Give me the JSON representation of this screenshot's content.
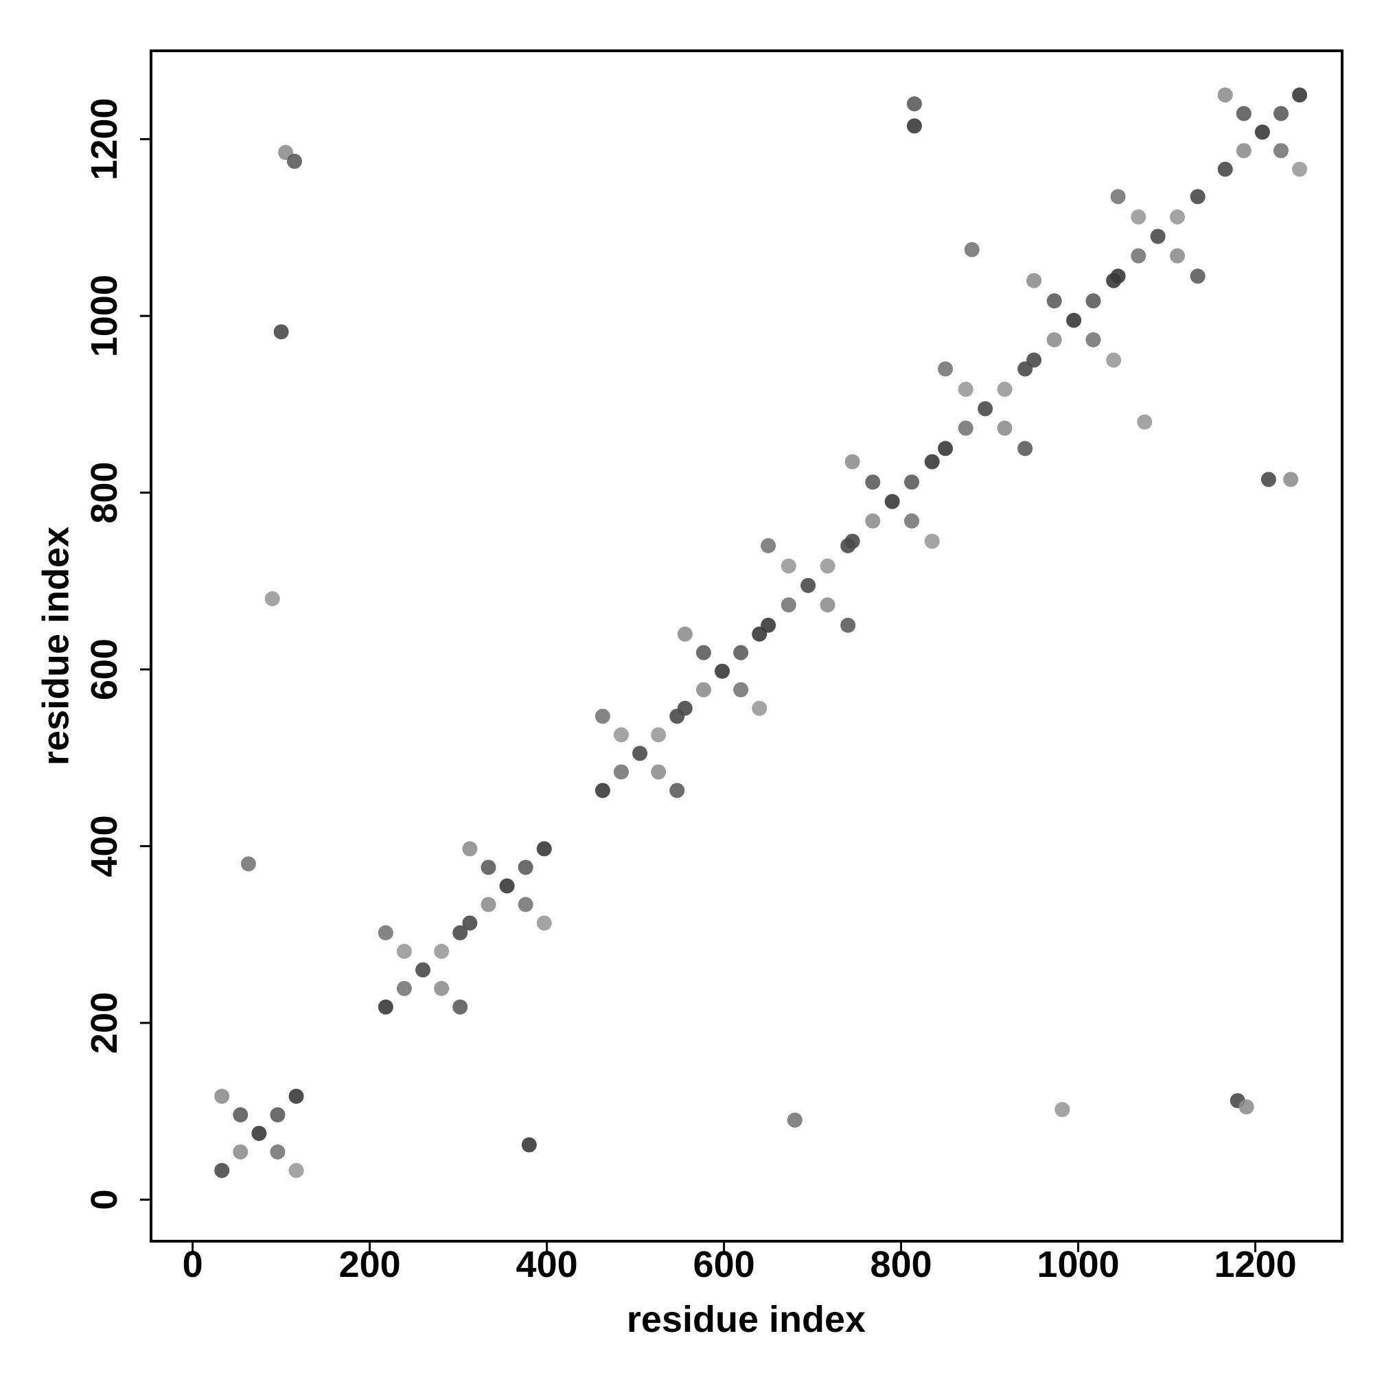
{
  "chart_data": {
    "type": "scatter",
    "x_label": "residue index",
    "y_label": "residue index",
    "xlim": [
      -47,
      1298
    ],
    "ylim": [
      -47,
      1300
    ],
    "xticks": [
      0,
      200,
      400,
      600,
      800,
      1000,
      1200
    ],
    "yticks": [
      0,
      200,
      400,
      600,
      800,
      1000,
      1200
    ],
    "colors": [
      "#8f8f8f",
      "#5c5c5c",
      "#3a3a3a",
      "#777777",
      "#9a9a9a",
      "#4a4a4a"
    ],
    "x": [
      33,
      54,
      75,
      96,
      117,
      33,
      54,
      96,
      117,
      218,
      239,
      260,
      281,
      302,
      218,
      239,
      281,
      302,
      313,
      334,
      355,
      376,
      397,
      313,
      334,
      376,
      397,
      463,
      484,
      505,
      526,
      547,
      463,
      484,
      526,
      547,
      556,
      577,
      598,
      619,
      640,
      556,
      577,
      619,
      640,
      650,
      673,
      695,
      717,
      740,
      650,
      673,
      717,
      740,
      745,
      768,
      790,
      812,
      835,
      745,
      768,
      812,
      835,
      850,
      873,
      895,
      917,
      940,
      850,
      873,
      917,
      940,
      950,
      973,
      995,
      1017,
      1040,
      950,
      973,
      1017,
      1040,
      1045,
      1068,
      1090,
      1112,
      1135,
      1045,
      1068,
      1112,
      1135,
      1166,
      1187,
      1208,
      1229,
      1250,
      1166,
      1187,
      1229,
      1250,
      63,
      90,
      100,
      105,
      115,
      380,
      680,
      982,
      1180,
      1190,
      815,
      815,
      880,
      1075,
      1215,
      1240
    ],
    "y": [
      117,
      96,
      75,
      54,
      33,
      33,
      54,
      96,
      117,
      302,
      281,
      260,
      239,
      218,
      218,
      239,
      281,
      302,
      397,
      376,
      355,
      334,
      313,
      313,
      334,
      376,
      397,
      547,
      526,
      505,
      484,
      463,
      463,
      484,
      526,
      547,
      640,
      619,
      598,
      577,
      556,
      556,
      577,
      619,
      640,
      740,
      717,
      695,
      673,
      650,
      650,
      673,
      717,
      740,
      835,
      812,
      790,
      768,
      745,
      745,
      768,
      812,
      835,
      940,
      917,
      895,
      873,
      850,
      850,
      873,
      917,
      940,
      1040,
      1017,
      995,
      973,
      950,
      950,
      973,
      1017,
      1040,
      1135,
      1112,
      1090,
      1068,
      1045,
      1045,
      1068,
      1112,
      1135,
      1250,
      1229,
      1208,
      1187,
      1166,
      1166,
      1187,
      1229,
      1250,
      380,
      680,
      982,
      1185,
      1175,
      62,
      90,
      102,
      112,
      105,
      1240,
      1215,
      1075,
      880,
      815,
      815
    ]
  }
}
